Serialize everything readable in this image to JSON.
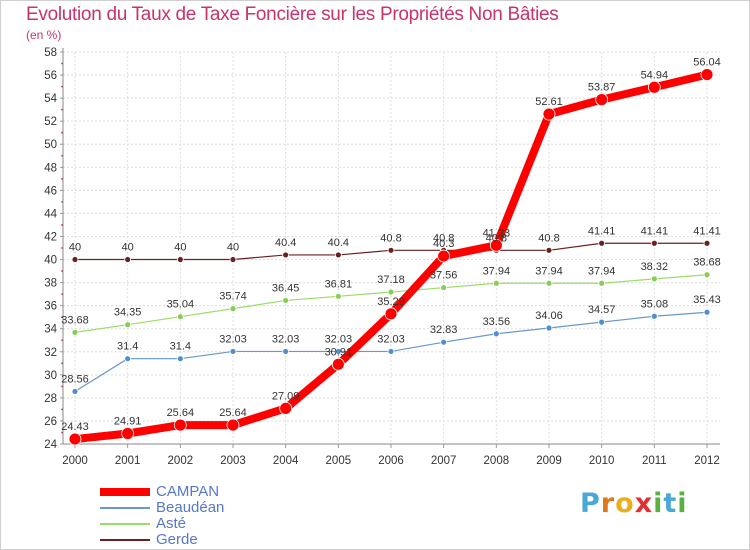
{
  "title": "Evolution du Taux de Taxe Foncière sur les Propriétés Non Bâties",
  "unit_label": "(en %)",
  "logo": {
    "text": "Proxiti",
    "letters": [
      {
        "ch": "P",
        "color": "#4aa8d8"
      },
      {
        "ch": "r",
        "color": "#e07820"
      },
      {
        "ch": "o",
        "color": "#e8b020"
      },
      {
        "ch": "x",
        "color": "#e03030"
      },
      {
        "ch": "i",
        "color": "#5ab040"
      },
      {
        "ch": "t",
        "color": "#4aa8d8"
      },
      {
        "ch": "i",
        "color": "#5ab040"
      }
    ]
  },
  "chart_data": {
    "type": "line",
    "title": "Evolution du Taux de Taxe Foncière sur les Propriétés Non Bâties",
    "ylabel": "(en %)",
    "xlabel": "",
    "ylim": [
      24,
      58
    ],
    "yticks": [
      24,
      26,
      28,
      30,
      32,
      34,
      36,
      38,
      40,
      42,
      44,
      46,
      48,
      50,
      52,
      54,
      56,
      58
    ],
    "categories": [
      "2000",
      "2001",
      "2002",
      "2003",
      "2004",
      "2005",
      "2006",
      "2007",
      "2008",
      "2009",
      "2010",
      "2011",
      "2012"
    ],
    "series": [
      {
        "name": "Gerde",
        "color": "#6b1f1f",
        "width": 1.2,
        "values": [
          40,
          40,
          40,
          40,
          40.4,
          40.4,
          40.8,
          40.8,
          40.8,
          40.8,
          41.41,
          41.41,
          41.41
        ],
        "labels": [
          "40",
          "40",
          "40",
          "40",
          "40.4",
          "40.4",
          "40.8",
          "40.8",
          "40.8",
          "40.8",
          "41.41",
          "41.41",
          "41.41"
        ]
      },
      {
        "name": "Asté",
        "color": "#99dd66",
        "width": 1.2,
        "values": [
          33.68,
          34.35,
          35.04,
          35.74,
          36.45,
          36.81,
          37.18,
          37.56,
          37.94,
          37.94,
          37.94,
          38.32,
          38.68
        ],
        "labels": [
          "33.68",
          "34.35",
          "35.04",
          "35.74",
          "36.45",
          "36.81",
          "37.18",
          "37.56",
          "37.94",
          "37.94",
          "37.94",
          "38.32",
          "38.68"
        ]
      },
      {
        "name": "Beaudéan",
        "color": "#6699cc",
        "width": 1.2,
        "values": [
          28.56,
          31.4,
          31.4,
          32.03,
          32.03,
          32.03,
          32.03,
          32.83,
          33.56,
          34.06,
          34.57,
          35.08,
          35.43
        ],
        "labels": [
          "28.56",
          "31.4",
          "31.4",
          "32.03",
          "32.03",
          "32.03",
          "32.03",
          "32.83",
          "33.56",
          "34.06",
          "34.57",
          "35.08",
          "35.43"
        ]
      },
      {
        "name": "CAMPAN",
        "color": "#ff0000",
        "width": 8,
        "values": [
          24.43,
          24.91,
          25.64,
          25.64,
          27.09,
          30.91,
          35.29,
          40.3,
          41.23,
          52.61,
          53.87,
          54.94,
          56.04
        ],
        "labels": [
          "24.43",
          "24.91",
          "25.64",
          "25.64",
          "27.09",
          "30.91",
          "35.29",
          "40.3",
          "41.23",
          "52.61",
          "53.87",
          "54.94",
          "56.04"
        ]
      }
    ],
    "legend_order": [
      "CAMPAN",
      "Beaudéan",
      "Asté",
      "Gerde"
    ],
    "legend_position": "bottom-left"
  }
}
